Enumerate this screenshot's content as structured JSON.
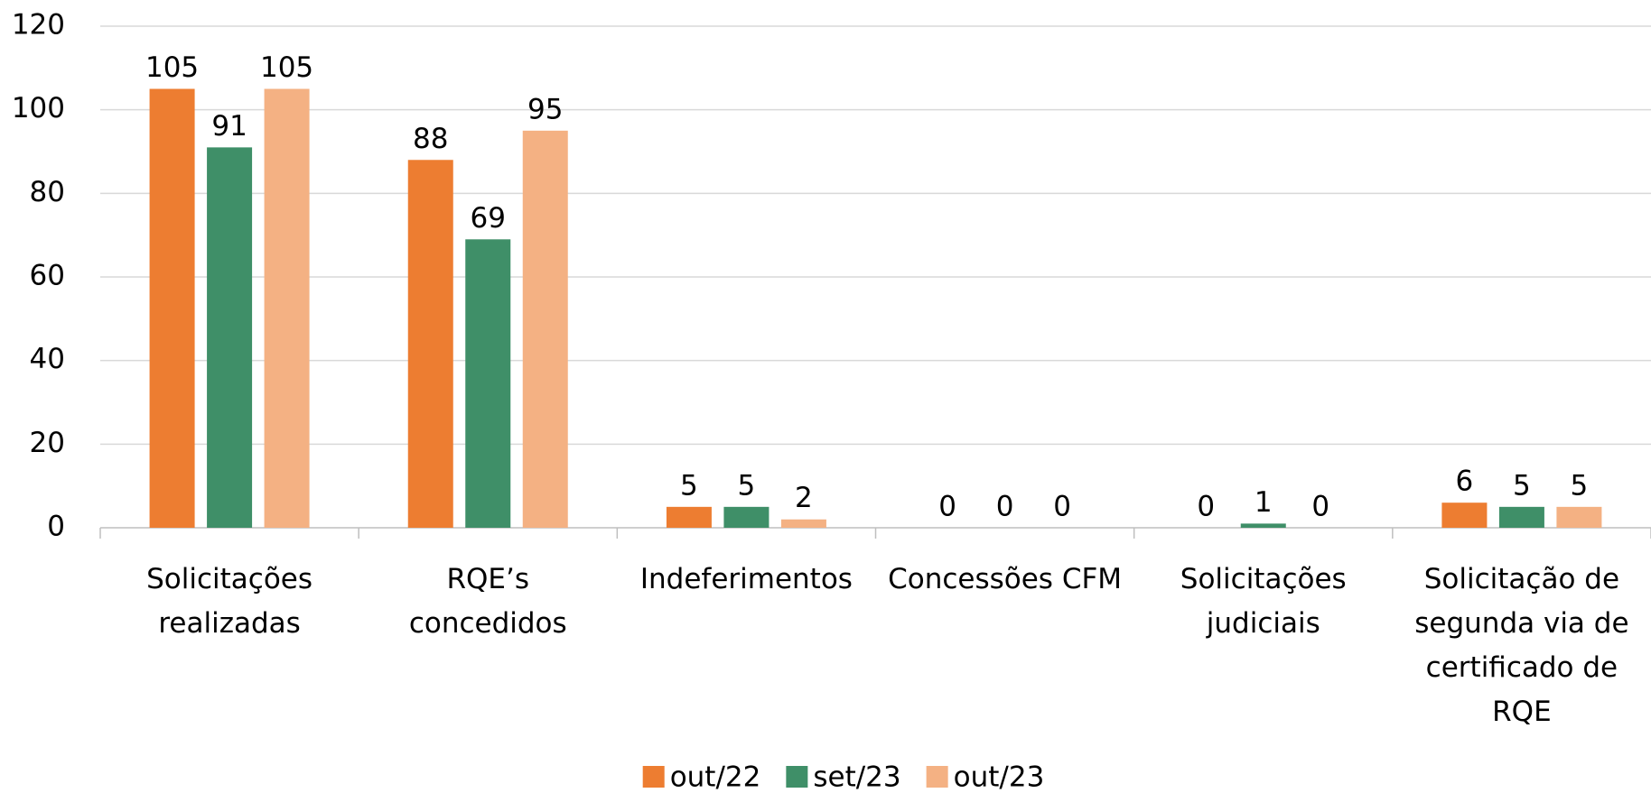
{
  "chart_data": {
    "type": "bar",
    "categories": [
      "Solicitações realizadas",
      "RQE’s concedidos",
      "Indeferimentos",
      "Concessões CFM",
      "Solicitações judiciais",
      "Solicitação de segunda via de certificado de RQE"
    ],
    "series": [
      {
        "name": "out/22",
        "color": "#ed7d31",
        "values": [
          105,
          88,
          5,
          0,
          0,
          6
        ]
      },
      {
        "name": "set/23",
        "color": "#3f8f68",
        "values": [
          91,
          69,
          5,
          0,
          1,
          5
        ]
      },
      {
        "name": "out/23",
        "color": "#f4b183",
        "values": [
          105,
          95,
          2,
          0,
          0,
          5
        ]
      }
    ],
    "ylim": [
      0,
      120
    ],
    "yticks": [
      0,
      20,
      40,
      60,
      80,
      100,
      120
    ],
    "grid": true,
    "legend": "bottom"
  }
}
